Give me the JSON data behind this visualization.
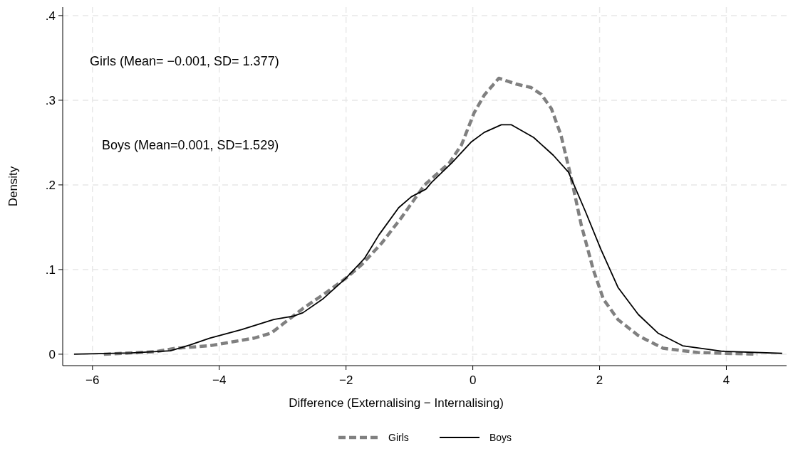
{
  "chart_data": {
    "type": "line",
    "xlabel": "Difference (Externalising − Internalising)",
    "ylabel": "Density",
    "annotations": [
      "Girls (Mean= −0.001, SD= 1.377)",
      "Boys (Mean=0.001, SD=1.529)"
    ],
    "xlim": [
      -6.47,
      4.95
    ],
    "ylim": [
      -0.0135,
      0.41
    ],
    "xticks": [
      {
        "value": -6,
        "label": "−6"
      },
      {
        "value": -4,
        "label": "−4"
      },
      {
        "value": -2,
        "label": "−2"
      },
      0,
      2,
      4
    ],
    "yticks": [
      0,
      {
        "value": 0.1,
        "label": ".1"
      },
      {
        "value": 0.2,
        "label": ".2"
      },
      {
        "value": 0.3,
        "label": ".3"
      },
      {
        "value": 0.4,
        "label": ".4"
      }
    ],
    "grid": true,
    "legend": "bottom",
    "marker": "none",
    "series": [
      {
        "name": "Girls",
        "color": "#808080",
        "line_style": "dashed",
        "x": [
          -5.82,
          -5.0,
          -4.69,
          -4.15,
          -3.45,
          -3.18,
          -2.99,
          -2.68,
          -2.29,
          -2.0,
          -1.75,
          -1.44,
          -1.13,
          -0.76,
          -0.37,
          -0.18,
          0.02,
          0.18,
          0.41,
          0.69,
          0.92,
          1.08,
          1.24,
          1.39,
          1.55,
          1.71,
          1.9,
          2.06,
          2.29,
          2.61,
          3.0,
          3.55,
          4.49
        ],
        "values": [
          0,
          0.003,
          0.007,
          0.01,
          0.019,
          0.025,
          0.036,
          0.054,
          0.074,
          0.09,
          0.106,
          0.131,
          0.161,
          0.2,
          0.226,
          0.247,
          0.285,
          0.306,
          0.326,
          0.319,
          0.315,
          0.307,
          0.29,
          0.259,
          0.209,
          0.153,
          0.1,
          0.065,
          0.041,
          0.022,
          0.007,
          0.002,
          0
        ]
      },
      {
        "name": "Boys",
        "color": "#000000",
        "line_style": "solid",
        "x": [
          -6.29,
          -5.39,
          -4.77,
          -4.46,
          -4.15,
          -3.65,
          -3.14,
          -2.83,
          -2.68,
          -2.37,
          -2.0,
          -1.71,
          -1.48,
          -1.17,
          -0.97,
          -0.74,
          -0.65,
          -0.33,
          -0.02,
          0.18,
          0.45,
          0.61,
          0.96,
          1.27,
          1.51,
          1.78,
          2.02,
          2.29,
          2.61,
          2.92,
          3.31,
          3.94,
          4.88
        ],
        "values": [
          0,
          0.0015,
          0.004,
          0.011,
          0.019,
          0.029,
          0.041,
          0.045,
          0.049,
          0.065,
          0.09,
          0.113,
          0.141,
          0.173,
          0.186,
          0.195,
          0.203,
          0.226,
          0.251,
          0.262,
          0.271,
          0.271,
          0.256,
          0.235,
          0.215,
          0.168,
          0.124,
          0.079,
          0.047,
          0.025,
          0.01,
          0.0035,
          0.001
        ]
      }
    ]
  }
}
